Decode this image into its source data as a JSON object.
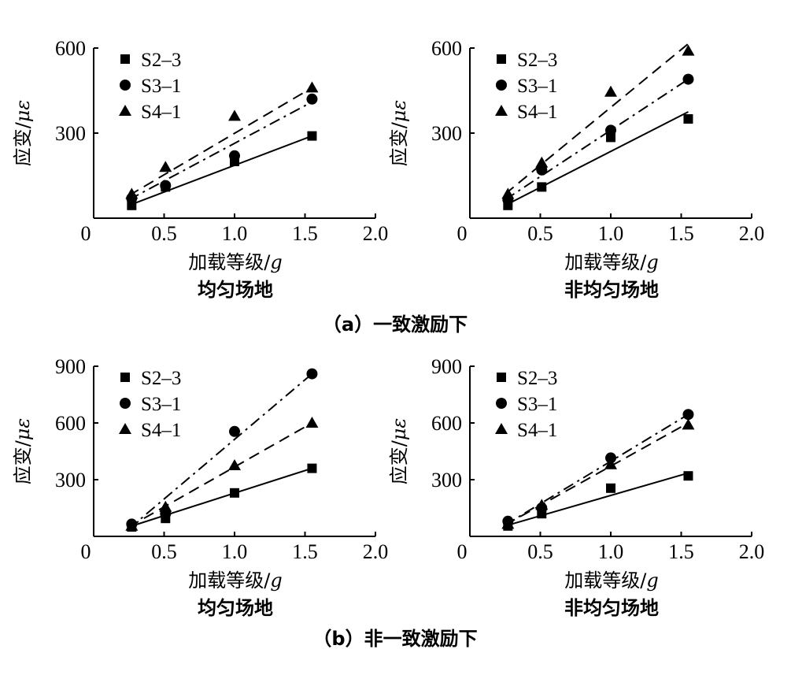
{
  "figure": {
    "caption_a": "（a）一致激励下",
    "caption_b": "（b）非一致激励下"
  },
  "chart_data": [
    {
      "type": "scatter",
      "group": "a",
      "site": "均匀场地",
      "xlabel": "加载等级/",
      "xlabel_unit": "g",
      "ylabel": "应变/",
      "ylabel_unit": "με",
      "xlim": [
        0,
        2.0
      ],
      "ylim": [
        0,
        600
      ],
      "xticks": [
        "0",
        "0.5",
        "1.0",
        "1.5",
        "2.0"
      ],
      "yticks": [
        300,
        600
      ],
      "x": [
        0.27,
        0.51,
        1.0,
        1.55
      ],
      "series": [
        {
          "name": "S2–3",
          "marker": "square",
          "line": "solid",
          "values": [
            45,
            110,
            200,
            290
          ],
          "fit": [
            [
              0.25,
              45
            ],
            [
              1.55,
              290
            ]
          ]
        },
        {
          "name": "S3–1",
          "marker": "circle",
          "line": "dashdot",
          "values": [
            70,
            115,
            220,
            420
          ],
          "fit": [
            [
              0.25,
              65
            ],
            [
              1.55,
              410
            ]
          ]
        },
        {
          "name": "S4–1",
          "marker": "triangle",
          "line": "dashed",
          "values": [
            85,
            180,
            360,
            460
          ],
          "fit": [
            [
              0.25,
              80
            ],
            [
              1.55,
              460
            ]
          ]
        }
      ]
    },
    {
      "type": "scatter",
      "group": "a",
      "site": "非均匀场地",
      "xlabel": "加载等级/",
      "xlabel_unit": "g",
      "ylabel": "应变/",
      "ylabel_unit": "με",
      "xlim": [
        0,
        2.0
      ],
      "ylim": [
        0,
        600
      ],
      "xticks": [
        "0",
        "0.5",
        "1.0",
        "1.5",
        "2.0"
      ],
      "yticks": [
        300,
        600
      ],
      "x": [
        0.27,
        0.51,
        1.0,
        1.55
      ],
      "series": [
        {
          "name": "S2–3",
          "marker": "square",
          "line": "solid",
          "values": [
            45,
            110,
            285,
            350
          ],
          "fit": [
            [
              0.25,
              45
            ],
            [
              1.55,
              375
            ]
          ]
        },
        {
          "name": "S3–1",
          "marker": "circle",
          "line": "dashdot",
          "values": [
            65,
            170,
            310,
            490
          ],
          "fit": [
            [
              0.25,
              65
            ],
            [
              1.55,
              490
            ]
          ]
        },
        {
          "name": "S4–1",
          "marker": "triangle",
          "line": "dashed",
          "values": [
            85,
            195,
            445,
            590
          ],
          "fit": [
            [
              0.25,
              85
            ],
            [
              1.55,
              615
            ]
          ]
        }
      ]
    },
    {
      "type": "scatter",
      "group": "b",
      "site": "均匀场地",
      "xlabel": "加载等级/",
      "xlabel_unit": "g",
      "ylabel": "应变/",
      "ylabel_unit": "με",
      "xlim": [
        0,
        2.0
      ],
      "ylim": [
        0,
        900
      ],
      "xticks": [
        "0",
        "0.5",
        "1.0",
        "1.5",
        "2.0"
      ],
      "yticks": [
        300,
        600,
        900
      ],
      "x": [
        0.27,
        0.51,
        1.0,
        1.55
      ],
      "series": [
        {
          "name": "S2–3",
          "marker": "square",
          "line": "solid",
          "values": [
            50,
            95,
            230,
            360
          ],
          "fit": [
            [
              0.25,
              50
            ],
            [
              1.55,
              360
            ]
          ]
        },
        {
          "name": "S3–1",
          "marker": "circle",
          "line": "dashdot",
          "values": [
            65,
            120,
            555,
            860
          ],
          "fit": [
            [
              0.25,
              40
            ],
            [
              1.55,
              860
            ]
          ]
        },
        {
          "name": "S4–1",
          "marker": "triangle",
          "line": "dashed",
          "values": [
            55,
            155,
            375,
            600
          ],
          "fit": [
            [
              0.25,
              50
            ],
            [
              1.55,
              600
            ]
          ]
        }
      ]
    },
    {
      "type": "scatter",
      "group": "b",
      "site": "非均匀场地",
      "xlabel": "加载等级/",
      "xlabel_unit": "g",
      "ylabel": "应变/",
      "ylabel_unit": "με",
      "xlim": [
        0,
        2.0
      ],
      "ylim": [
        0,
        900
      ],
      "xticks": [
        "0",
        "0.5",
        "1.0",
        "1.5",
        "2.0"
      ],
      "yticks": [
        300,
        600,
        900
      ],
      "x": [
        0.27,
        0.51,
        1.0,
        1.55
      ],
      "series": [
        {
          "name": "S2–3",
          "marker": "square",
          "line": "solid",
          "values": [
            55,
            120,
            255,
            320
          ],
          "fit": [
            [
              0.25,
              55
            ],
            [
              1.55,
              335
            ]
          ]
        },
        {
          "name": "S3–1",
          "marker": "circle",
          "line": "dashdot",
          "values": [
            80,
            150,
            415,
            645
          ],
          "fit": [
            [
              0.25,
              60
            ],
            [
              1.55,
              645
            ]
          ]
        },
        {
          "name": "S4–1",
          "marker": "triangle",
          "line": "dashed",
          "values": [
            65,
            165,
            380,
            590
          ],
          "fit": [
            [
              0.25,
              60
            ],
            [
              1.55,
              600
            ]
          ]
        }
      ]
    }
  ]
}
